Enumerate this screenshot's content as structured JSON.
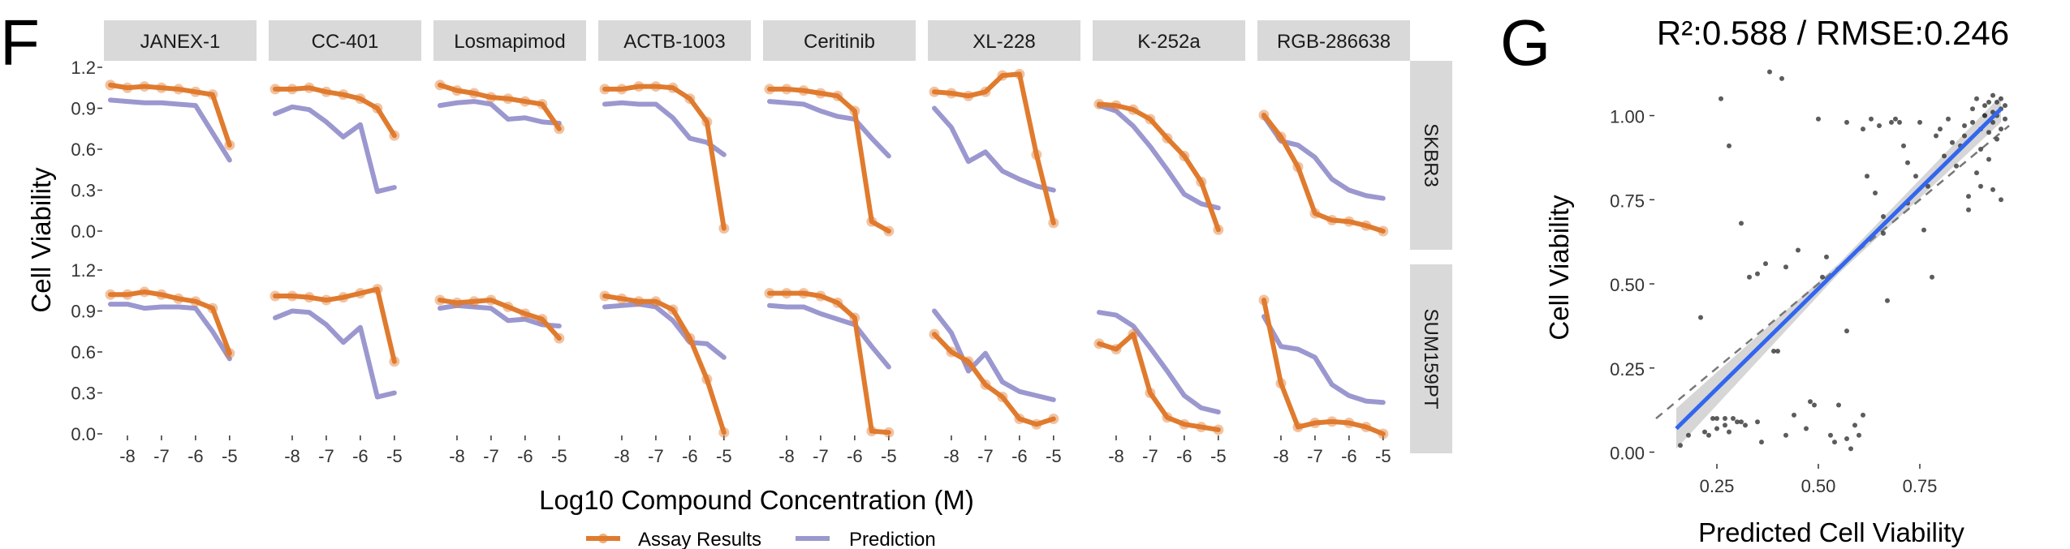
{
  "panel_f": {
    "letter": "F",
    "xlabel": "Log10 Compound Concentration (M)",
    "ylabel": "Cell Viability",
    "x_ticks": [
      "-8",
      "-7",
      "-6",
      "-5"
    ],
    "y_ticks": [
      "0.0",
      "0.3",
      "0.6",
      "0.9",
      "1.2"
    ],
    "compounds": [
      "JANEX-1",
      "CC-401",
      "Losmapimod",
      "ACTB-1003",
      "Ceritinib",
      "XL-228",
      "K-252a",
      "RGB-286638"
    ],
    "cell_lines": [
      "SKBR3",
      "SUM159PT"
    ],
    "legend": {
      "assay": "Assay Results",
      "prediction": "Prediction"
    }
  },
  "panel_g": {
    "letter": "G",
    "title": "R²:0.588 / RMSE:0.246",
    "xlabel": "Predicted Cell Viability",
    "ylabel": "Cell Viability",
    "x_ticks": [
      "0.25",
      "0.50",
      "0.75"
    ],
    "y_ticks": [
      "0.00",
      "0.25",
      "0.50",
      "0.75",
      "1.00"
    ]
  },
  "colors": {
    "assay": "#e07b2e",
    "prediction": "#9b97cf",
    "fit": "#3366ee",
    "ribbon": "#cccccc",
    "points": "#333333",
    "strip": "#d9d9d9"
  },
  "chart_data": [
    {
      "type": "line",
      "x_unit": "log10 M",
      "xlim": [
        -8.5,
        -4.4
      ],
      "ylim": [
        0,
        1.2
      ],
      "facets": [
        {
          "compound": "JANEX-1",
          "cell_line": "SKBR3",
          "assay": {
            "x": [
              -8.5,
              -8,
              -7.5,
              -7,
              -6.5,
              -6,
              -5.5,
              -5
            ],
            "y": [
              1.07,
              1.05,
              1.06,
              1.05,
              1.04,
              1.02,
              1.0,
              0.63
            ]
          },
          "prediction": {
            "x": [
              -8.5,
              -8,
              -7.5,
              -7,
              -6.5,
              -6,
              -5.5,
              -5
            ],
            "y": [
              0.96,
              0.95,
              0.94,
              0.94,
              0.93,
              0.92,
              0.72,
              0.52
            ]
          }
        },
        {
          "compound": "CC-401",
          "cell_line": "SKBR3",
          "assay": {
            "x": [
              -8.5,
              -8,
              -7.5,
              -7,
              -6.5,
              -6,
              -5.5,
              -5
            ],
            "y": [
              1.04,
              1.04,
              1.05,
              1.02,
              1.0,
              0.97,
              0.9,
              0.7
            ]
          },
          "prediction": {
            "x": [
              -8.5,
              -8,
              -7.5,
              -7,
              -6.5,
              -6,
              -5.5,
              -5
            ],
            "y": [
              0.86,
              0.91,
              0.89,
              0.8,
              0.69,
              0.78,
              0.29,
              0.32
            ]
          }
        },
        {
          "compound": "Losmapimod",
          "cell_line": "SKBR3",
          "assay": {
            "x": [
              -8.5,
              -8,
              -7.5,
              -7,
              -6.5,
              -6,
              -5.5,
              -5
            ],
            "y": [
              1.07,
              1.03,
              1.01,
              0.98,
              0.97,
              0.95,
              0.93,
              0.75
            ]
          },
          "prediction": {
            "x": [
              -8.5,
              -8,
              -7.5,
              -7,
              -6.5,
              -6,
              -5.5,
              -5
            ],
            "y": [
              0.92,
              0.94,
              0.95,
              0.93,
              0.82,
              0.83,
              0.8,
              0.79
            ]
          }
        },
        {
          "compound": "ACTB-1003",
          "cell_line": "SKBR3",
          "assay": {
            "x": [
              -8.5,
              -8,
              -7.5,
              -7,
              -6.5,
              -6,
              -5.5,
              -5
            ],
            "y": [
              1.04,
              1.04,
              1.06,
              1.06,
              1.05,
              0.97,
              0.8,
              0.02
            ]
          },
          "prediction": {
            "x": [
              -8.5,
              -8,
              -7.5,
              -7,
              -6.5,
              -6,
              -5.5,
              -5
            ],
            "y": [
              0.93,
              0.94,
              0.93,
              0.93,
              0.83,
              0.68,
              0.65,
              0.56
            ]
          }
        },
        {
          "compound": "Ceritinib",
          "cell_line": "SKBR3",
          "assay": {
            "x": [
              -8.5,
              -8,
              -7.5,
              -7,
              -6.5,
              -6,
              -5.5,
              -5
            ],
            "y": [
              1.04,
              1.04,
              1.03,
              1.01,
              0.99,
              0.88,
              0.07,
              0.0
            ]
          },
          "prediction": {
            "x": [
              -8.5,
              -8,
              -7.5,
              -7,
              -6.5,
              -6,
              -5.5,
              -5
            ],
            "y": [
              0.95,
              0.94,
              0.93,
              0.88,
              0.84,
              0.82,
              0.68,
              0.55
            ]
          }
        },
        {
          "compound": "XL-228",
          "cell_line": "SKBR3",
          "assay": {
            "x": [
              -8.5,
              -8,
              -7.5,
              -7,
              -6.5,
              -6,
              -5.5,
              -5
            ],
            "y": [
              1.02,
              1.01,
              0.99,
              1.02,
              1.14,
              1.15,
              0.56,
              0.06
            ]
          },
          "prediction": {
            "x": [
              -8.5,
              -8,
              -7.5,
              -7,
              -6.5,
              -6,
              -5.5,
              -5
            ],
            "y": [
              0.9,
              0.76,
              0.51,
              0.58,
              0.44,
              0.38,
              0.33,
              0.3
            ]
          }
        },
        {
          "compound": "K-252a",
          "cell_line": "SKBR3",
          "assay": {
            "x": [
              -8.5,
              -8,
              -7.5,
              -7,
              -6.5,
              -6,
              -5.5,
              -5
            ],
            "y": [
              0.93,
              0.92,
              0.89,
              0.82,
              0.68,
              0.55,
              0.36,
              0.01
            ]
          },
          "prediction": {
            "x": [
              -8.5,
              -8,
              -7.5,
              -7,
              -6.5,
              -6,
              -5.5,
              -5
            ],
            "y": [
              0.92,
              0.88,
              0.77,
              0.62,
              0.45,
              0.27,
              0.2,
              0.17
            ]
          }
        },
        {
          "compound": "RGB-286638",
          "cell_line": "SKBR3",
          "assay": {
            "x": [
              -8.5,
              -8,
              -7.5,
              -7,
              -6.5,
              -6,
              -5.5,
              -5
            ],
            "y": [
              0.85,
              0.69,
              0.47,
              0.13,
              0.08,
              0.07,
              0.04,
              0.0
            ]
          },
          "prediction": {
            "x": [
              -8.5,
              -8,
              -7.5,
              -7,
              -6.5,
              -6,
              -5.5,
              -5
            ],
            "y": [
              0.84,
              0.66,
              0.63,
              0.54,
              0.38,
              0.3,
              0.26,
              0.24
            ]
          }
        },
        {
          "compound": "JANEX-1",
          "cell_line": "SUM159PT",
          "assay": {
            "x": [
              -8.5,
              -8,
              -7.5,
              -7,
              -6.5,
              -6,
              -5.5,
              -5
            ],
            "y": [
              1.02,
              1.02,
              1.04,
              1.02,
              0.99,
              0.97,
              0.92,
              0.59
            ]
          },
          "prediction": {
            "x": [
              -8.5,
              -8,
              -7.5,
              -7,
              -6.5,
              -6,
              -5.5,
              -5
            ],
            "y": [
              0.95,
              0.95,
              0.92,
              0.93,
              0.93,
              0.92,
              0.75,
              0.55
            ]
          }
        },
        {
          "compound": "CC-401",
          "cell_line": "SUM159PT",
          "assay": {
            "x": [
              -8.5,
              -8,
              -7.5,
              -7,
              -6.5,
              -6,
              -5.5,
              -5
            ],
            "y": [
              1.01,
              1.01,
              1.0,
              0.98,
              1.0,
              1.03,
              1.06,
              0.53
            ]
          },
          "prediction": {
            "x": [
              -8.5,
              -8,
              -7.5,
              -7,
              -6.5,
              -6,
              -5.5,
              -5
            ],
            "y": [
              0.85,
              0.9,
              0.89,
              0.8,
              0.67,
              0.78,
              0.27,
              0.3
            ]
          }
        },
        {
          "compound": "Losmapimod",
          "cell_line": "SUM159PT",
          "assay": {
            "x": [
              -8.5,
              -8,
              -7.5,
              -7,
              -6.5,
              -6,
              -5.5,
              -5
            ],
            "y": [
              0.98,
              0.96,
              0.97,
              0.98,
              0.93,
              0.88,
              0.84,
              0.7
            ]
          },
          "prediction": {
            "x": [
              -8.5,
              -8,
              -7.5,
              -7,
              -6.5,
              -6,
              -5.5,
              -5
            ],
            "y": [
              0.92,
              0.94,
              0.93,
              0.92,
              0.83,
              0.84,
              0.8,
              0.79
            ]
          }
        },
        {
          "compound": "ACTB-1003",
          "cell_line": "SUM159PT",
          "assay": {
            "x": [
              -8.5,
              -8,
              -7.5,
              -7,
              -6.5,
              -6,
              -5.5,
              -5
            ],
            "y": [
              1.01,
              0.99,
              0.97,
              0.97,
              0.91,
              0.7,
              0.4,
              0.01
            ]
          },
          "prediction": {
            "x": [
              -8.5,
              -8,
              -7.5,
              -7,
              -6.5,
              -6,
              -5.5,
              -5
            ],
            "y": [
              0.93,
              0.94,
              0.95,
              0.93,
              0.83,
              0.67,
              0.66,
              0.56
            ]
          }
        },
        {
          "compound": "Ceritinib",
          "cell_line": "SUM159PT",
          "assay": {
            "x": [
              -8.5,
              -8,
              -7.5,
              -7,
              -6.5,
              -6,
              -5.5,
              -5
            ],
            "y": [
              1.03,
              1.03,
              1.03,
              1.01,
              0.96,
              0.85,
              0.02,
              0.01
            ]
          },
          "prediction": {
            "x": [
              -8.5,
              -8,
              -7.5,
              -7,
              -6.5,
              -6,
              -5.5,
              -5
            ],
            "y": [
              0.94,
              0.93,
              0.93,
              0.88,
              0.84,
              0.8,
              0.64,
              0.49
            ]
          }
        },
        {
          "compound": "XL-228",
          "cell_line": "SUM159PT",
          "assay": {
            "x": [
              -8.5,
              -8,
              -7.5,
              -7,
              -6.5,
              -6,
              -5.5,
              -5
            ],
            "y": [
              0.73,
              0.6,
              0.53,
              0.36,
              0.27,
              0.11,
              0.07,
              0.11
            ]
          },
          "prediction": {
            "x": [
              -8.5,
              -8,
              -7.5,
              -7,
              -6.5,
              -6,
              -5.5,
              -5
            ],
            "y": [
              0.9,
              0.74,
              0.46,
              0.59,
              0.38,
              0.31,
              0.28,
              0.25
            ]
          }
        },
        {
          "compound": "K-252a",
          "cell_line": "SUM159PT",
          "assay": {
            "x": [
              -8.5,
              -8,
              -7.5,
              -7,
              -6.5,
              -6,
              -5.5,
              -5
            ],
            "y": [
              0.66,
              0.62,
              0.73,
              0.3,
              0.12,
              0.07,
              0.05,
              0.03
            ]
          },
          "prediction": {
            "x": [
              -8.5,
              -8,
              -7.5,
              -7,
              -6.5,
              -6,
              -5.5,
              -5
            ],
            "y": [
              0.89,
              0.87,
              0.79,
              0.63,
              0.46,
              0.28,
              0.19,
              0.16
            ]
          }
        },
        {
          "compound": "RGB-286638",
          "cell_line": "SUM159PT",
          "assay": {
            "x": [
              -8.5,
              -8,
              -7.5,
              -7,
              -6.5,
              -6,
              -5.5,
              -5
            ],
            "y": [
              0.98,
              0.37,
              0.05,
              0.08,
              0.09,
              0.08,
              0.05,
              0.0
            ]
          },
          "prediction": {
            "x": [
              -8.5,
              -8,
              -7.5,
              -7,
              -6.5,
              -6,
              -5.5,
              -5
            ],
            "y": [
              0.86,
              0.64,
              0.62,
              0.56,
              0.36,
              0.28,
              0.24,
              0.23
            ]
          }
        }
      ]
    },
    {
      "type": "scatter",
      "title": "R²:0.588 / RMSE:0.246",
      "xlabel": "Predicted Cell Viability",
      "ylabel": "Cell Viability",
      "xlim": [
        0.1,
        0.97
      ],
      "ylim": [
        -0.03,
        1.17
      ],
      "fit": {
        "x": [
          0.15,
          0.95
        ],
        "y": [
          0.07,
          1.02
        ]
      },
      "ribbon_halfwidth": {
        "at_x": [
          0.15,
          0.55,
          0.95
        ],
        "value": [
          0.06,
          0.015,
          0.04
        ]
      },
      "identity_line": true,
      "points": {
        "x": [
          0.16,
          0.21,
          0.23,
          0.24,
          0.25,
          0.26,
          0.27,
          0.28,
          0.29,
          0.3,
          0.31,
          0.33,
          0.35,
          0.37,
          0.38,
          0.39,
          0.41,
          0.45,
          0.48,
          0.5,
          0.53,
          0.55,
          0.57,
          0.58,
          0.6,
          0.62,
          0.64,
          0.66,
          0.67,
          0.7,
          0.72,
          0.74,
          0.76,
          0.78,
          0.8,
          0.82,
          0.84,
          0.85,
          0.86,
          0.87,
          0.88,
          0.88,
          0.89,
          0.89,
          0.9,
          0.9,
          0.91,
          0.91,
          0.92,
          0.92,
          0.92,
          0.93,
          0.93,
          0.93,
          0.94,
          0.94,
          0.94,
          0.95,
          0.95,
          0.95,
          0.96,
          0.96,
          0.25,
          0.28,
          0.32,
          0.36,
          0.42,
          0.47,
          0.52,
          0.57,
          0.61,
          0.65,
          0.69,
          0.75,
          0.79,
          0.83,
          0.87,
          0.9,
          0.27,
          0.31,
          0.4,
          0.44,
          0.49,
          0.51,
          0.54,
          0.59,
          0.63,
          0.68,
          0.71,
          0.77,
          0.81,
          0.86,
          0.91,
          0.93,
          0.95,
          0.66,
          0.72,
          0.57,
          0.42,
          0.61,
          0.18,
          0.22,
          0.35
        ],
        "y": [
          0.02,
          0.4,
          0.05,
          0.1,
          0.07,
          1.05,
          0.08,
          0.91,
          0.1,
          0.09,
          0.68,
          0.52,
          0.53,
          0.56,
          1.13,
          0.3,
          1.11,
          0.6,
          0.15,
          0.99,
          0.05,
          0.14,
          0.98,
          0.01,
          0.05,
          0.82,
          0.77,
          0.7,
          0.45,
          0.98,
          0.86,
          0.82,
          0.66,
          0.52,
          0.96,
          0.99,
          0.85,
          0.91,
          0.94,
          0.72,
          0.98,
          1.02,
          0.83,
          1.05,
          0.9,
          0.96,
          1.0,
          1.03,
          0.87,
          0.95,
          1.04,
          0.98,
          1.01,
          1.06,
          0.93,
          1.0,
          1.04,
          0.96,
          1.02,
          1.05,
          0.99,
          1.03,
          0.1,
          0.06,
          0.08,
          0.03,
          0.05,
          0.07,
          0.58,
          0.04,
          0.96,
          0.97,
          0.99,
          0.98,
          0.94,
          0.92,
          0.76,
          0.79,
          0.1,
          0.09,
          0.3,
          0.11,
          0.14,
          0.52,
          0.03,
          0.08,
          0.99,
          0.98,
          0.91,
          0.79,
          0.88,
          0.97,
          1.0,
          0.78,
          0.75,
          0.65,
          0.74,
          0.36,
          0.55,
          0.11,
          0.05,
          0.06,
          0.09
        ]
      }
    }
  ]
}
